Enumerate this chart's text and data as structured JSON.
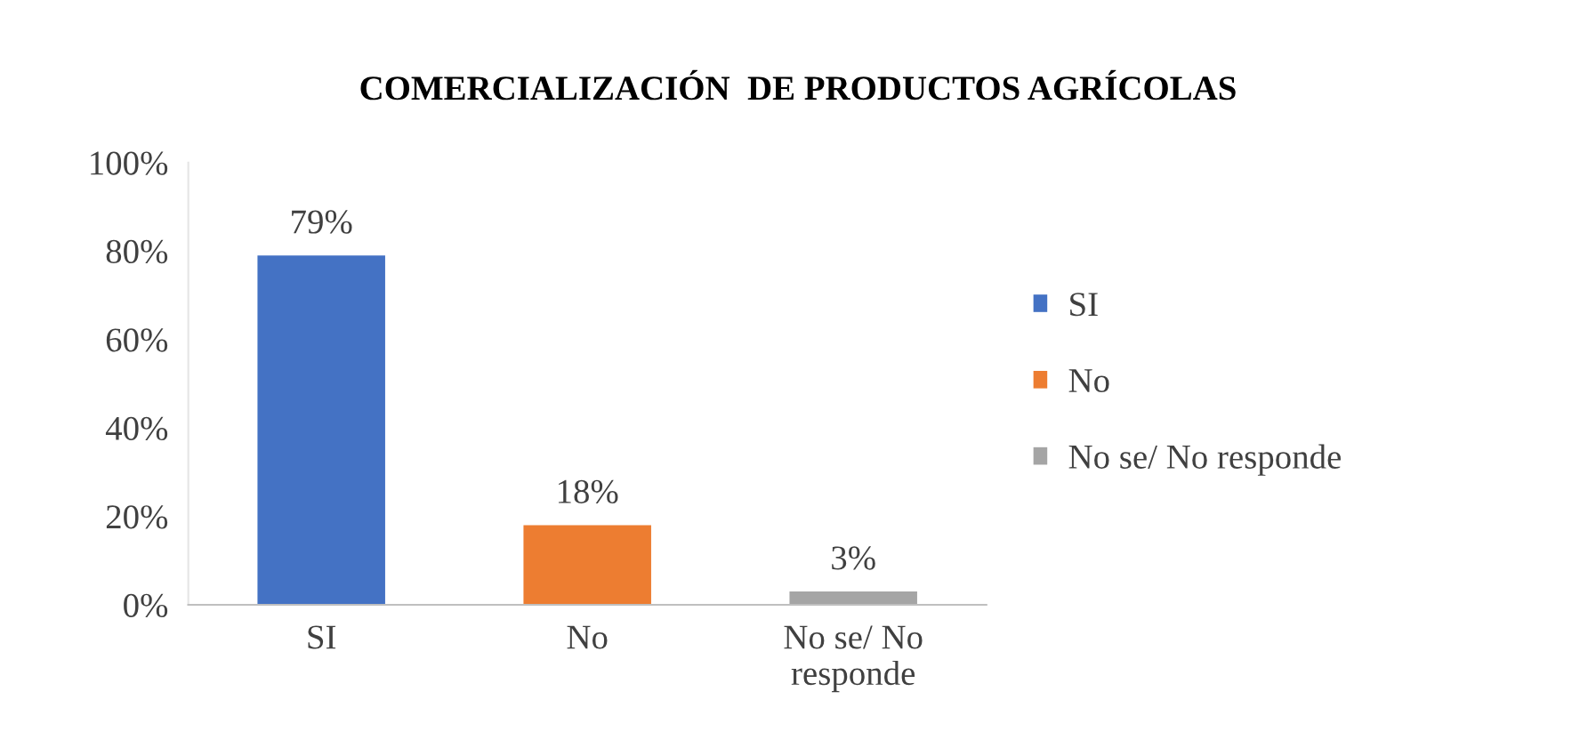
{
  "chart_data": {
    "type": "bar",
    "title": "COMERCIALIZACIÓN  DE PRODUCTOS AGRÍCOLAS",
    "categories": [
      "SI",
      "No",
      "No se/ No responde"
    ],
    "series": [
      {
        "name": "SI",
        "color": "#4472c4",
        "values": [
          79,
          null,
          null
        ],
        "value_labels": [
          "79%",
          null,
          null
        ]
      },
      {
        "name": "No",
        "color": "#ed7d31",
        "values": [
          null,
          18,
          null
        ],
        "value_labels": [
          null,
          "18%",
          null
        ]
      },
      {
        "name": "No se/ No responde",
        "color": "#a5a5a5",
        "values": [
          null,
          null,
          3
        ],
        "value_labels": [
          null,
          null,
          "3%"
        ]
      }
    ],
    "ylim": [
      0,
      100
    ],
    "yticks": [
      {
        "value": 0,
        "label": "0%"
      },
      {
        "value": 20,
        "label": "20%"
      },
      {
        "value": 40,
        "label": "40%"
      },
      {
        "value": 60,
        "label": "60%"
      },
      {
        "value": 80,
        "label": "80%"
      },
      {
        "value": 100,
        "label": "100%"
      }
    ],
    "legend": "right",
    "grid": false
  }
}
